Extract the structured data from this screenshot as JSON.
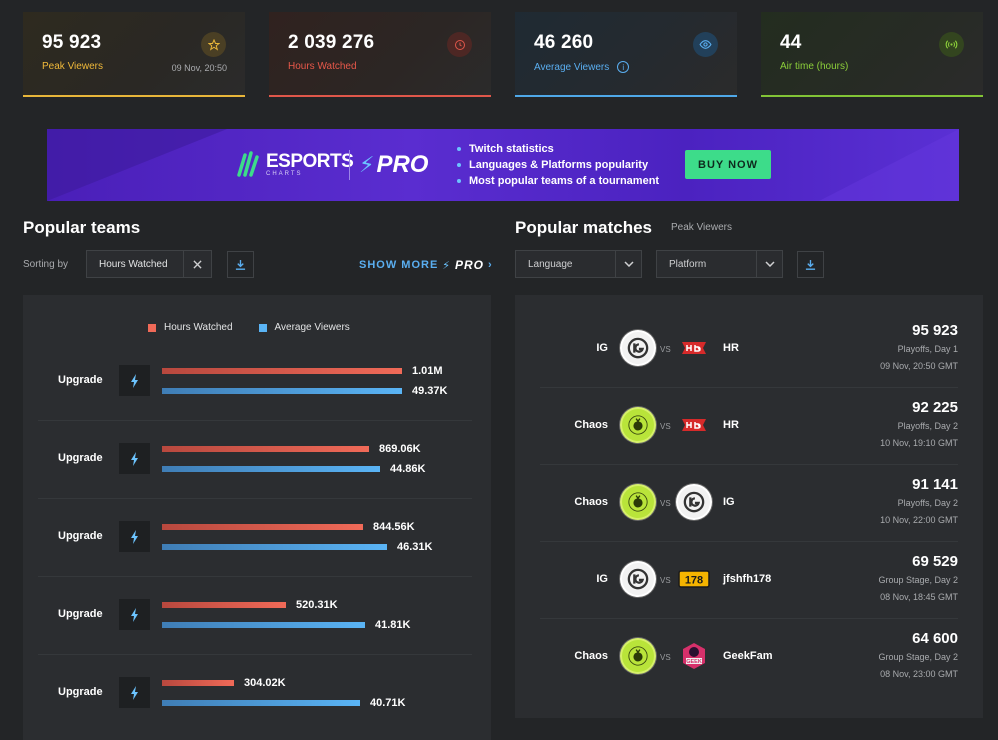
{
  "stats": [
    {
      "value": "95 923",
      "label": "Peak Viewers",
      "timestamp": "09 Nov, 20:50",
      "icon": "star-icon",
      "color": "#e8b63a"
    },
    {
      "value": "2 039 276",
      "label": "Hours Watched",
      "icon": "clock-icon",
      "color": "#e0574a"
    },
    {
      "value": "46 260",
      "label": "Average Viewers",
      "icon": "eye-icon",
      "color": "#4fa8e8",
      "info": "i"
    },
    {
      "value": "44",
      "label": "Air time (hours)",
      "icon": "broadcast-icon",
      "color": "#82c436"
    }
  ],
  "banner": {
    "brand_big": "ESPORTS",
    "brand_small": "CHARTS",
    "pro": "PRO",
    "features": [
      "Twitch statistics",
      "Languages & Platforms popularity",
      "Most popular teams of a tournament"
    ],
    "cta": "BUY NOW"
  },
  "popular_teams": {
    "title": "Popular teams",
    "sorting_label": "Sorting by",
    "sorting_value": "Hours Watched",
    "show_more": "SHOW MORE",
    "show_more_pro": "PRO",
    "legend": [
      "Hours Watched",
      "Average Viewers"
    ],
    "chart_data": {
      "type": "bar",
      "categories": [
        "Upgrade",
        "Upgrade",
        "Upgrade",
        "Upgrade",
        "Upgrade"
      ],
      "series": [
        {
          "name": "Hours Watched",
          "values": [
            1010000,
            869060,
            844560,
            520310,
            304020
          ],
          "labels": [
            "1.01M",
            "869.06K",
            "844.56K",
            "520.31K",
            "304.02K"
          ],
          "color": "#f06a58"
        },
        {
          "name": "Average Viewers",
          "values": [
            49370,
            44860,
            46310,
            41810,
            40710
          ],
          "labels": [
            "49.37K",
            "44.86K",
            "46.31K",
            "41.81K",
            "40.71K"
          ],
          "color": "#5ab4f5"
        }
      ]
    }
  },
  "popular_matches": {
    "title": "Popular matches",
    "subtitle": "Peak Viewers",
    "filters": {
      "language": "Language",
      "platform": "Platform"
    },
    "vs": "VS",
    "matches": [
      {
        "team1": "IG",
        "team2": "HR",
        "value": "95 923",
        "stage": "Playoffs, Day 1",
        "time": "09 Nov, 20:50 GMT"
      },
      {
        "team1": "Chaos",
        "team2": "HR",
        "value": "92 225",
        "stage": "Playoffs, Day 2",
        "time": "10 Nov, 19:10 GMT"
      },
      {
        "team1": "Chaos",
        "team2": "IG",
        "value": "91 141",
        "stage": "Playoffs, Day 2",
        "time": "10 Nov, 22:00 GMT"
      },
      {
        "team1": "IG",
        "team2": "jfshfh178",
        "value": "69 529",
        "stage": "Group Stage, Day 2",
        "time": "08 Nov, 18:45 GMT"
      },
      {
        "team1": "Chaos",
        "team2": "GeekFam",
        "value": "64 600",
        "stage": "Group Stage, Day 2",
        "time": "08 Nov, 23:00 GMT"
      }
    ]
  }
}
